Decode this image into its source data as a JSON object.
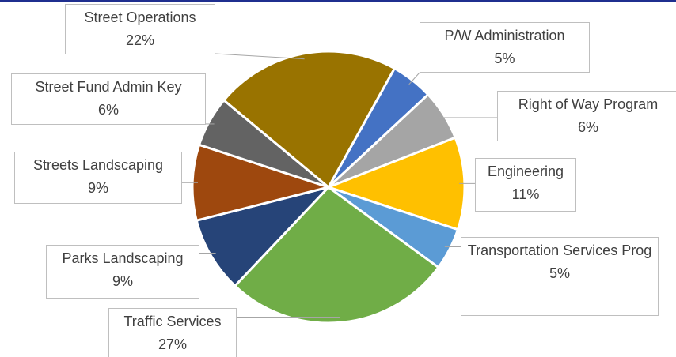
{
  "chart_data": {
    "type": "pie",
    "categories": [
      "P/W Administration",
      "Right of Way Program",
      "Engineering",
      "Transportation Services Prog",
      "Traffic Services",
      "Parks Landscaping",
      "Streets Landscaping",
      "Street Fund Admin Key",
      "Street Operations"
    ],
    "values": [
      5,
      6,
      11,
      5,
      27,
      9,
      9,
      6,
      22
    ],
    "value_labels": [
      "5%",
      "6%",
      "11%",
      "5%",
      "27%",
      "9%",
      "9%",
      "6%",
      "22%"
    ],
    "colors": [
      "#4472c4",
      "#a5a5a5",
      "#ffc000",
      "#5b9bd5",
      "#70ad47",
      "#264478",
      "#9e480e",
      "#636363",
      "#997300"
    ]
  }
}
